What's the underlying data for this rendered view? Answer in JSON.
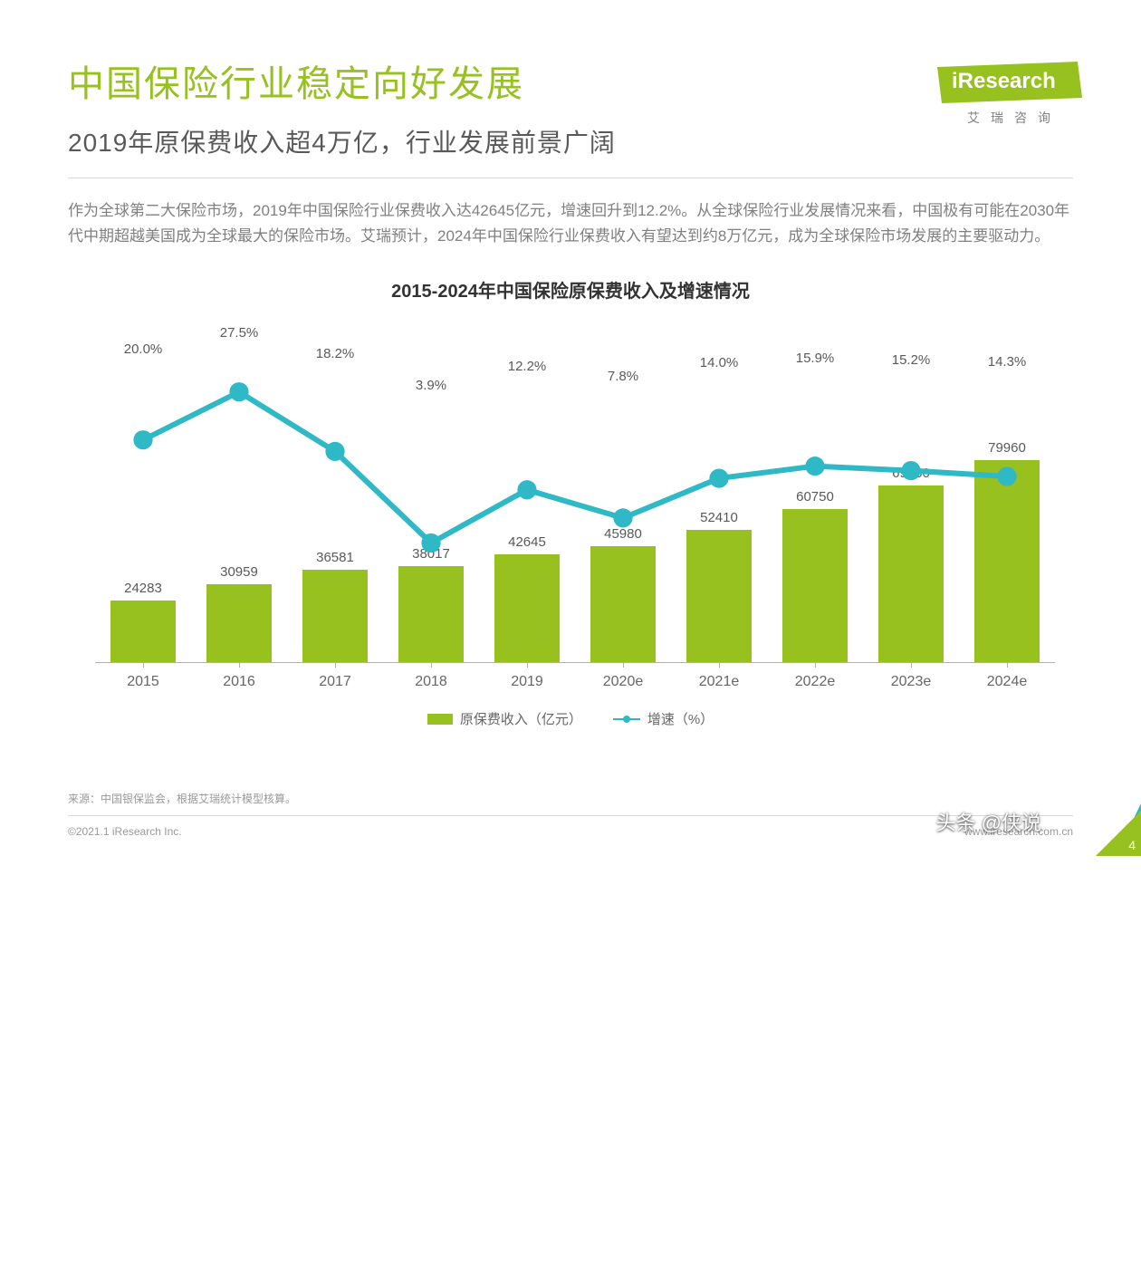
{
  "colors": {
    "accent_green": "#97c11f",
    "accent_cyan": "#2fb8c5",
    "text_title": "#97c11f",
    "text_sub": "#595959",
    "text_body": "#808080",
    "axis": "#b0b0b0"
  },
  "header": {
    "title": "中国保险行业稳定向好发展",
    "subtitle": "2019年原保费收入超4万亿，行业发展前景广阔",
    "logo_text": "Research",
    "logo_prefix": "i",
    "logo_sub": "艾瑞咨询"
  },
  "body_text": "作为全球第二大保险市场，2019年中国保险行业保费收入达42645亿元，增速回升到12.2%。从全球保险行业发展情况来看，中国极有可能在2030年代中期超越美国成为全球最大的保险市场。艾瑞预计，2024年中国保险行业保费收入有望达到约8万亿元，成为全球保险市场发展的主要驱动力。",
  "chart": {
    "title": "2015-2024年中国保险原保费收入及增速情况",
    "type": "bar+line",
    "categories": [
      "2015",
      "2016",
      "2017",
      "2018",
      "2019",
      "2020e",
      "2021e",
      "2022e",
      "2023e",
      "2024e"
    ],
    "bar_values": [
      24283,
      30959,
      36581,
      38017,
      42645,
      45980,
      52410,
      60750,
      69960,
      79960
    ],
    "bar_max": 90000,
    "bar_color": "#97c11f",
    "line_values": [
      20.0,
      27.5,
      18.2,
      3.9,
      12.2,
      7.8,
      14.0,
      15.9,
      15.2,
      14.3
    ],
    "line_labels": [
      "20.0%",
      "27.5%",
      "18.2%",
      "3.9%",
      "12.2%",
      "7.8%",
      "14.0%",
      "15.9%",
      "15.2%",
      "14.3%"
    ],
    "line_color": "#2fb8c5",
    "line_y_top_pct": 5,
    "line_y_bottom_pct": 25,
    "line_range": [
      0,
      30
    ],
    "legend_bar": "原保费收入（亿元）",
    "legend_line": "增速（%）"
  },
  "footer": {
    "source": "来源：中国银保监会，根据艾瑞统计模型核算。",
    "copyright": "©2021.1 iResearch Inc.",
    "url": "www.iresearch.com.cn",
    "page": "4"
  },
  "watermark": "头条 @侠说"
}
